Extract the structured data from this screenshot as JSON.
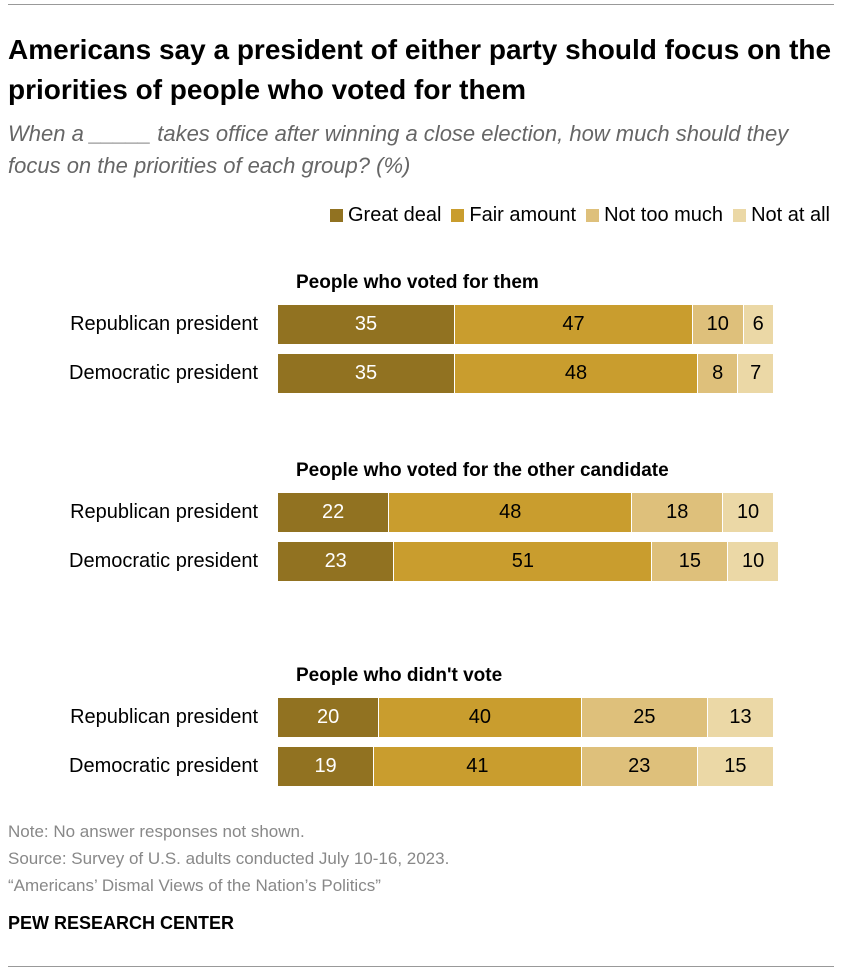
{
  "title": "Americans say a president of either party should focus on the priorities of people who voted for them",
  "subtitle": "When a _____ takes office after winning a close election, how much should they focus on the priorities of each group? (%)",
  "chart_data": {
    "type": "bar",
    "orientation": "horizontal",
    "stacked": true,
    "legend": [
      "Great deal",
      "Fair amount",
      "Not too much",
      "Not at all"
    ],
    "colors": [
      "#917221",
      "#C99D2E",
      "#DEC07B",
      "#EBD8A6"
    ],
    "legend_placement": "top-right",
    "groups": [
      {
        "title": "People who voted for them",
        "rows": [
          {
            "label": "Republican president",
            "values": [
              35,
              47,
              10,
              6
            ]
          },
          {
            "label": "Democratic president",
            "values": [
              35,
              48,
              8,
              7
            ]
          }
        ]
      },
      {
        "title": "People who voted for the other candidate",
        "rows": [
          {
            "label": "Republican president",
            "values": [
              22,
              48,
              18,
              10
            ]
          },
          {
            "label": "Democratic president",
            "values": [
              23,
              51,
              15,
              10
            ]
          }
        ]
      },
      {
        "title": "People who didn't vote",
        "rows": [
          {
            "label": "Republican president",
            "values": [
              20,
              40,
              25,
              13
            ]
          },
          {
            "label": "Democratic president",
            "values": [
              19,
              41,
              23,
              15
            ]
          }
        ]
      }
    ]
  },
  "notes": [
    "Note: No answer responses not shown.",
    "Source: Survey of U.S. adults conducted July 10-16, 2023.",
    "“Americans’ Dismal Views of the Nation’s Politics”"
  ],
  "brand": "PEW RESEARCH CENTER"
}
